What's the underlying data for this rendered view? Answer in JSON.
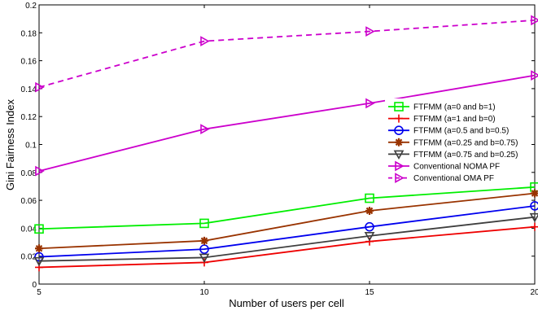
{
  "chart_data": {
    "type": "line",
    "title": "",
    "xlabel": "Number of users per cell",
    "ylabel": "Gini Fairness Index",
    "x": [
      5,
      10,
      15,
      20
    ],
    "xlim": [
      5,
      20
    ],
    "ylim": [
      0,
      0.2
    ],
    "xticks": [
      "5",
      "10",
      "15",
      "20"
    ],
    "yticks": [
      "0",
      "0.02",
      "0.04",
      "0.06",
      "0.08",
      "0.1",
      "0.12",
      "0.14",
      "0.16",
      "0.18",
      "0.2"
    ],
    "grid": false,
    "legend_position": "right-middle",
    "series": [
      {
        "name": "FTFMM (a=0 and b=1)",
        "values": [
          0.0395,
          0.0435,
          0.0615,
          0.0695
        ],
        "color": "#00ee00",
        "marker": "square",
        "dash": "solid"
      },
      {
        "name": "FTFMM (a=1 and b=0)",
        "values": [
          0.012,
          0.0155,
          0.0305,
          0.041
        ],
        "color": "#ee0000",
        "marker": "plus",
        "dash": "solid"
      },
      {
        "name": "FTFMM (a=0.5 and b=0.5)",
        "values": [
          0.0195,
          0.025,
          0.041,
          0.056
        ],
        "color": "#0000ee",
        "marker": "circle",
        "dash": "solid"
      },
      {
        "name": "FTFMM (a=0.25 and b=0.75)",
        "values": [
          0.0255,
          0.031,
          0.0525,
          0.065
        ],
        "color": "#993300",
        "marker": "star",
        "dash": "solid"
      },
      {
        "name": "FTFMM (a=0.75 and b=0.25)",
        "values": [
          0.0165,
          0.019,
          0.0345,
          0.048
        ],
        "color": "#3f3f3f",
        "marker": "triangle-down",
        "dash": "solid"
      },
      {
        "name": "Conventional NOMA PF",
        "values": [
          0.081,
          0.111,
          0.1295,
          0.1495
        ],
        "color": "#cc00cc",
        "marker": "triangle-right",
        "dash": "solid"
      },
      {
        "name": "Conventional OMA PF",
        "values": [
          0.141,
          0.174,
          0.181,
          0.189
        ],
        "color": "#cc00cc",
        "marker": "triangle-right",
        "dash": "dashed"
      }
    ]
  }
}
